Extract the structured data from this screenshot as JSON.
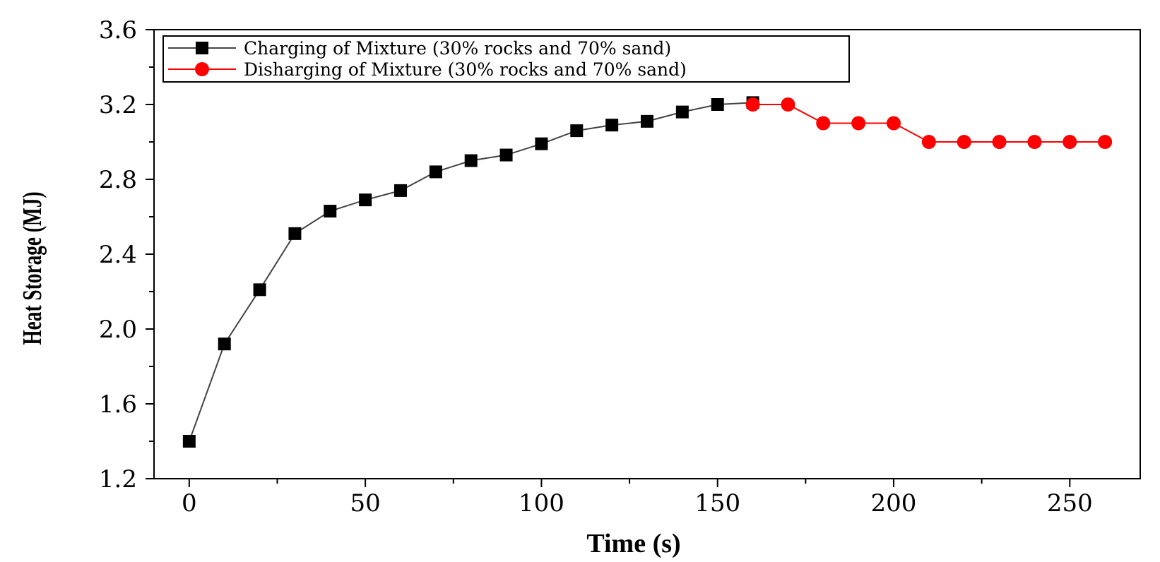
{
  "chart_data": {
    "type": "line",
    "title": "",
    "xlabel": "Time (s)",
    "ylabel": "Heat Storage (MJ)",
    "xlim": [
      -10,
      270
    ],
    "ylim": [
      1.2,
      3.6
    ],
    "xticks": [
      0,
      50,
      100,
      150,
      200,
      250
    ],
    "xtick_labels": [
      "0",
      "50",
      "100",
      "150",
      "200",
      "250"
    ],
    "yticks": [
      1.2,
      1.6,
      2.0,
      2.4,
      2.8,
      3.2,
      3.6
    ],
    "ytick_labels": [
      "1.2",
      "1.6",
      "2.0",
      "2.4",
      "2.8",
      "3.2",
      "3.6"
    ],
    "grid": false,
    "legend_position": "top-left",
    "series": [
      {
        "name": "Charging of Mixture (30% rocks and 70% sand)",
        "color": "#000000",
        "line_color": "#444444",
        "marker": "square",
        "x": [
          0,
          10,
          20,
          30,
          40,
          50,
          60,
          70,
          80,
          90,
          100,
          110,
          120,
          130,
          140,
          150,
          160
        ],
        "y": [
          1.4,
          1.92,
          2.21,
          2.51,
          2.63,
          2.69,
          2.74,
          2.84,
          2.9,
          2.93,
          2.99,
          3.06,
          3.09,
          3.11,
          3.16,
          3.2,
          3.21
        ]
      },
      {
        "name": "Disharging of Mixture (30% rocks and 70% sand)",
        "color": "#ff0000",
        "line_color": "#ff0000",
        "marker": "circle",
        "x": [
          160,
          170,
          180,
          190,
          200,
          210,
          220,
          230,
          240,
          250,
          260
        ],
        "y": [
          3.2,
          3.2,
          3.1,
          3.1,
          3.1,
          3.0,
          3.0,
          3.0,
          3.0,
          3.0,
          3.0
        ]
      }
    ]
  }
}
